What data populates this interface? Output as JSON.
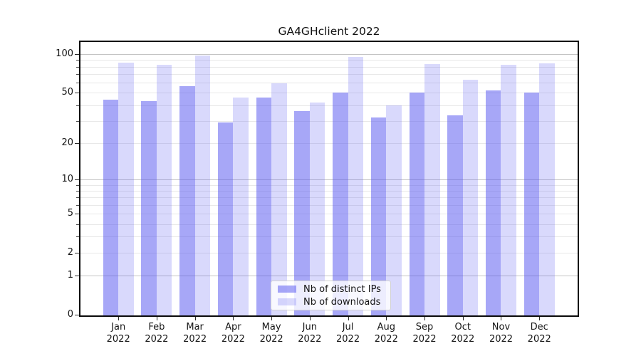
{
  "title": "GA4GHclient 2022",
  "chart_data": {
    "type": "bar",
    "title": "GA4GHclient 2022",
    "categories": [
      "Jan",
      "Feb",
      "Mar",
      "Apr",
      "May",
      "Jun",
      "Jul",
      "Aug",
      "Sep",
      "Oct",
      "Nov",
      "Dec"
    ],
    "category_year_line": "2022",
    "series": [
      {
        "name": "Nb of distinct IPs",
        "color": "#5050F080",
        "values": [
          44,
          43,
          56,
          29,
          46,
          36,
          50,
          32,
          50,
          33,
          52,
          50
        ]
      },
      {
        "name": "Nb of downloads",
        "color": "#5050F038",
        "values": [
          86,
          83,
          97,
          46,
          59,
          42,
          95,
          40,
          84,
          63,
          83,
          85
        ]
      }
    ],
    "yscale": "log1p",
    "ylim": [
      0,
      124
    ],
    "ytick_values": [
      0,
      1,
      2,
      5,
      10,
      20,
      50,
      100
    ],
    "ytick_labels": [
      "0",
      "1",
      "2",
      "5",
      "10",
      "20",
      "50",
      "100"
    ],
    "major_grid_values": [
      1,
      10,
      100
    ],
    "minor_grid_values": [
      2,
      3,
      4,
      5,
      6,
      7,
      8,
      9,
      20,
      30,
      40,
      50,
      60,
      70,
      80,
      90
    ],
    "minor_tick_values": [
      3,
      4,
      6,
      7,
      8,
      9,
      30,
      40,
      60,
      70,
      80,
      90
    ],
    "grid": true,
    "legend_position": "lower center",
    "colors": {
      "major_grid": "#c4c4c4",
      "minor_grid": "#e8e8e8",
      "spine": "#0a0a0a",
      "text": "#151515",
      "background": "#ffffff"
    }
  }
}
